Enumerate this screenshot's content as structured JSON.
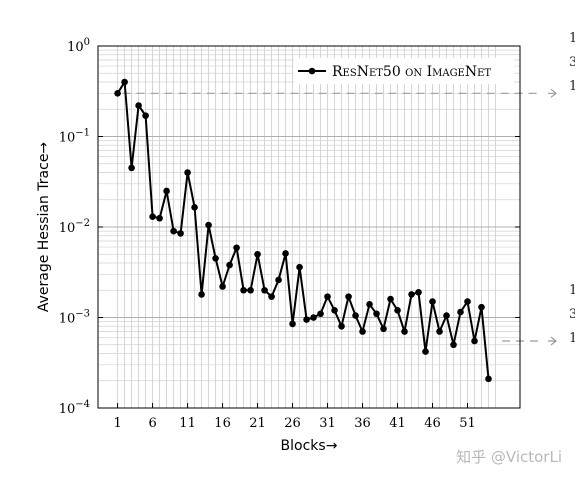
{
  "chart_data": {
    "type": "line",
    "xlabel": "Blocks→",
    "ylabel": "Average Hessian Trace→",
    "yscale": "log",
    "ylim": [
      0.0001,
      1
    ],
    "xlim": [
      1,
      55
    ],
    "y_ticks": [
      {
        "value": 0.0001,
        "base": "10",
        "exp": "−4"
      },
      {
        "value": 0.001,
        "base": "10",
        "exp": "−3"
      },
      {
        "value": 0.01,
        "base": "10",
        "exp": "−2"
      },
      {
        "value": 0.1,
        "base": "10",
        "exp": "−1"
      },
      {
        "value": 1,
        "base": "10",
        "exp": "0"
      }
    ],
    "x_ticks": [
      "1",
      "6",
      "11",
      "16",
      "21",
      "26",
      "31",
      "36",
      "41",
      "46",
      "51"
    ],
    "x_tick_values": [
      1,
      6,
      11,
      16,
      21,
      26,
      31,
      36,
      41,
      46,
      51
    ],
    "grid": true,
    "legend_position": "top-right",
    "series": [
      {
        "name": "ResNet50 on ImageNet",
        "color": "#000000",
        "x": [
          1,
          2,
          3,
          4,
          5,
          6,
          7,
          8,
          9,
          10,
          11,
          12,
          13,
          14,
          15,
          16,
          17,
          18,
          19,
          20,
          21,
          22,
          23,
          24,
          25,
          26,
          27,
          28,
          29,
          30,
          31,
          32,
          33,
          34,
          35,
          36,
          37,
          38,
          39,
          40,
          41,
          42,
          43,
          44,
          45,
          46,
          47,
          48,
          49,
          50,
          51,
          52,
          53,
          54
        ],
        "values": [
          0.3,
          0.4,
          0.045,
          0.22,
          0.17,
          0.013,
          0.0125,
          0.025,
          0.009,
          0.0085,
          0.04,
          0.0165,
          0.0018,
          0.0105,
          0.0045,
          0.0022,
          0.0038,
          0.0059,
          0.002,
          0.002,
          0.005,
          0.002,
          0.0017,
          0.0026,
          0.0051,
          0.00085,
          0.0036,
          0.00095,
          0.001,
          0.0011,
          0.0017,
          0.0012,
          0.0008,
          0.0017,
          0.00105,
          0.0007,
          0.0014,
          0.0011,
          0.00075,
          0.0016,
          0.0012,
          0.0007,
          0.0018,
          0.0019,
          0.00042,
          0.0015,
          0.0007,
          0.00105,
          0.0005,
          0.00115,
          0.0015,
          0.00055,
          0.0013,
          0.00021
        ]
      }
    ]
  },
  "reference_lines": [
    {
      "value": 0.3
    },
    {
      "value": 0.00055
    }
  ],
  "edge_glyphs": {
    "top": [
      "1",
      "3",
      "1"
    ],
    "bottom": [
      "1",
      "3",
      "1"
    ]
  },
  "watermark": "知乎 @VictorLi"
}
